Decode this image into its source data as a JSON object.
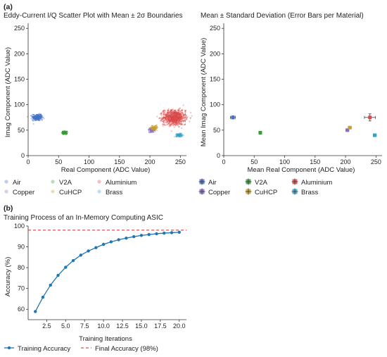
{
  "panel_a_label": "(a)",
  "panel_b_label": "(b)",
  "chart_data": [
    {
      "type": "scatter",
      "title": "Eddy-Current I/Q Scatter Plot with Mean ± 2σ Boundaries",
      "xlabel": "Real Component (ADC Value)",
      "ylabel": "Imag Component (ADC Value)",
      "xlim": [
        0,
        260
      ],
      "ylim": [
        0,
        260
      ],
      "xticks": [
        0,
        50,
        100,
        150,
        200,
        250
      ],
      "yticks": [
        0,
        50,
        100,
        150,
        200,
        250
      ],
      "grid": false,
      "legend_position": "bottom",
      "series": [
        {
          "name": "Air",
          "color": "#4472c4",
          "mean": [
            15,
            75
          ],
          "sd": [
            4,
            3
          ],
          "n": 260
        },
        {
          "name": "V2A",
          "color": "#3a9a3a",
          "mean": [
            60,
            45
          ],
          "sd": [
            2,
            1.5
          ],
          "n": 140
        },
        {
          "name": "Aluminium",
          "color": "#d94a4a",
          "mean": [
            240,
            75
          ],
          "sd": [
            9,
            7
          ],
          "n": 900
        },
        {
          "name": "Copper",
          "color": "#8e6cc2",
          "mean": [
            203,
            50
          ],
          "sd": [
            2.5,
            2
          ],
          "n": 90
        },
        {
          "name": "CuHCP",
          "color": "#c9a227",
          "mean": [
            207,
            55
          ],
          "sd": [
            2.5,
            2
          ],
          "n": 90
        },
        {
          "name": "Brass",
          "color": "#3aa0c6",
          "mean": [
            248,
            40
          ],
          "sd": [
            2.5,
            1.5
          ],
          "n": 90
        }
      ]
    },
    {
      "type": "scatter",
      "title": "Mean ± Standard Deviation (Error Bars per Material)",
      "xlabel": "Mean Real Component (ADC Value)",
      "ylabel": "Mean Imag Component (ADC Value)",
      "xlim": [
        0,
        260
      ],
      "ylim": [
        0,
        260
      ],
      "xticks": [
        0,
        50,
        100,
        150,
        200,
        250
      ],
      "yticks": [
        0,
        50,
        100,
        150,
        200,
        250
      ],
      "grid": false,
      "legend_position": "bottom",
      "series": [
        {
          "name": "Air",
          "color": "#4472c4",
          "x": 15,
          "y": 75,
          "xerr": 4,
          "yerr": 3
        },
        {
          "name": "V2A",
          "color": "#3a9a3a",
          "x": 60,
          "y": 45,
          "xerr": 2,
          "yerr": 1.5
        },
        {
          "name": "Aluminium",
          "color": "#d94a4a",
          "x": 240,
          "y": 75,
          "xerr": 9,
          "yerr": 7
        },
        {
          "name": "Copper",
          "color": "#8e6cc2",
          "x": 203,
          "y": 50,
          "xerr": 2.5,
          "yerr": 2
        },
        {
          "name": "CuHCP",
          "color": "#c9a227",
          "x": 207,
          "y": 55,
          "xerr": 2.5,
          "yerr": 2
        },
        {
          "name": "Brass",
          "color": "#3aa0c6",
          "x": 248,
          "y": 40,
          "xerr": 2.5,
          "yerr": 1.5
        }
      ]
    },
    {
      "type": "line",
      "title": "Training Process of an In-Memory Computing ASIC",
      "xlabel": "Training Iterations",
      "ylabel": "Accuracy (%)",
      "xlim": [
        0.05,
        20.95
      ],
      "ylim": [
        55,
        100
      ],
      "xticks": [
        2.5,
        5.0,
        7.5,
        10.0,
        12.5,
        15.0,
        17.5,
        20.0
      ],
      "xtick_labels": [
        "2.5",
        "5.0",
        "7.5",
        "10.0",
        "12.5",
        "15.0",
        "17.5",
        "20.0"
      ],
      "yticks": [
        60,
        70,
        80,
        90,
        100
      ],
      "grid": false,
      "legend_position": "bottom",
      "x": [
        1,
        2,
        3,
        4,
        5,
        6,
        7,
        8,
        9,
        10,
        11,
        12,
        13,
        14,
        15,
        16,
        17,
        18,
        19,
        20
      ],
      "series": [
        {
          "name": "Training Accuracy",
          "color": "#1f77b4",
          "values": [
            58.9,
            65.8,
            71.6,
            76.3,
            80.2,
            83.4,
            86.0,
            88.0,
            89.6,
            91.2,
            92.4,
            93.4,
            94.2,
            94.9,
            95.5,
            95.9,
            96.3,
            96.6,
            96.8,
            97.0
          ]
        },
        {
          "name": "Final Accuracy (98%)",
          "color": "#d62728",
          "style": "dashed",
          "y": 98
        }
      ]
    }
  ]
}
